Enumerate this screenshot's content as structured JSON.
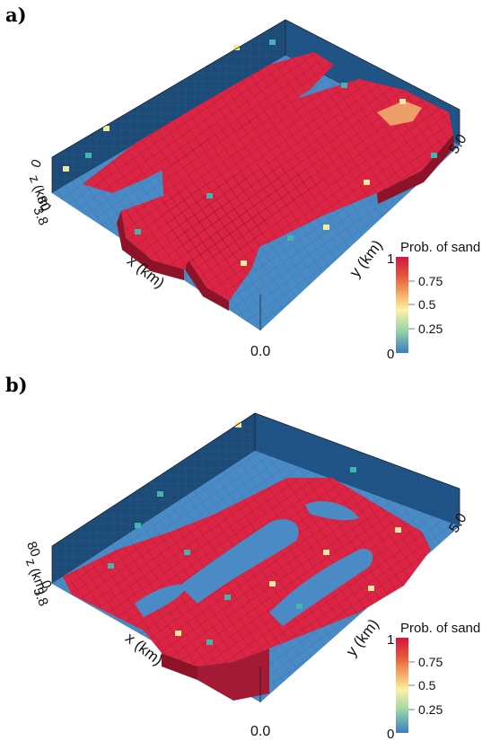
{
  "panels": [
    {
      "label": "a)",
      "axes": {
        "x_label": "x (km)",
        "y_label": "y (km)",
        "z_label": "z (km)",
        "x_zero": "0.0",
        "y_max": "5.0",
        "z_top": "0",
        "z_tick1": "80",
        "z_tick2": "3.8"
      },
      "colorbar": {
        "title": "Prob. of sand",
        "ticks": [
          "1",
          "0.75",
          "0.5",
          "0.25",
          "0"
        ]
      }
    },
    {
      "label": "b)",
      "axes": {
        "x_label": "x (km)",
        "y_label": "y (km)",
        "z_label": "z (km)",
        "x_zero": "0.0",
        "y_max": "5.0",
        "z_tick1": "80",
        "z_tick2": "3.8",
        "z_tick3": "0"
      },
      "colorbar": {
        "title": "Prob. of sand",
        "ticks": [
          "1",
          "0.75",
          "0.5",
          "0.25",
          "0"
        ]
      }
    }
  ],
  "colors": {
    "sand": "#dc2545",
    "shale": "#4a8bc6",
    "backwall": "#1c4b78",
    "mid": "#f3e89b",
    "low": "#46b3b0"
  }
}
